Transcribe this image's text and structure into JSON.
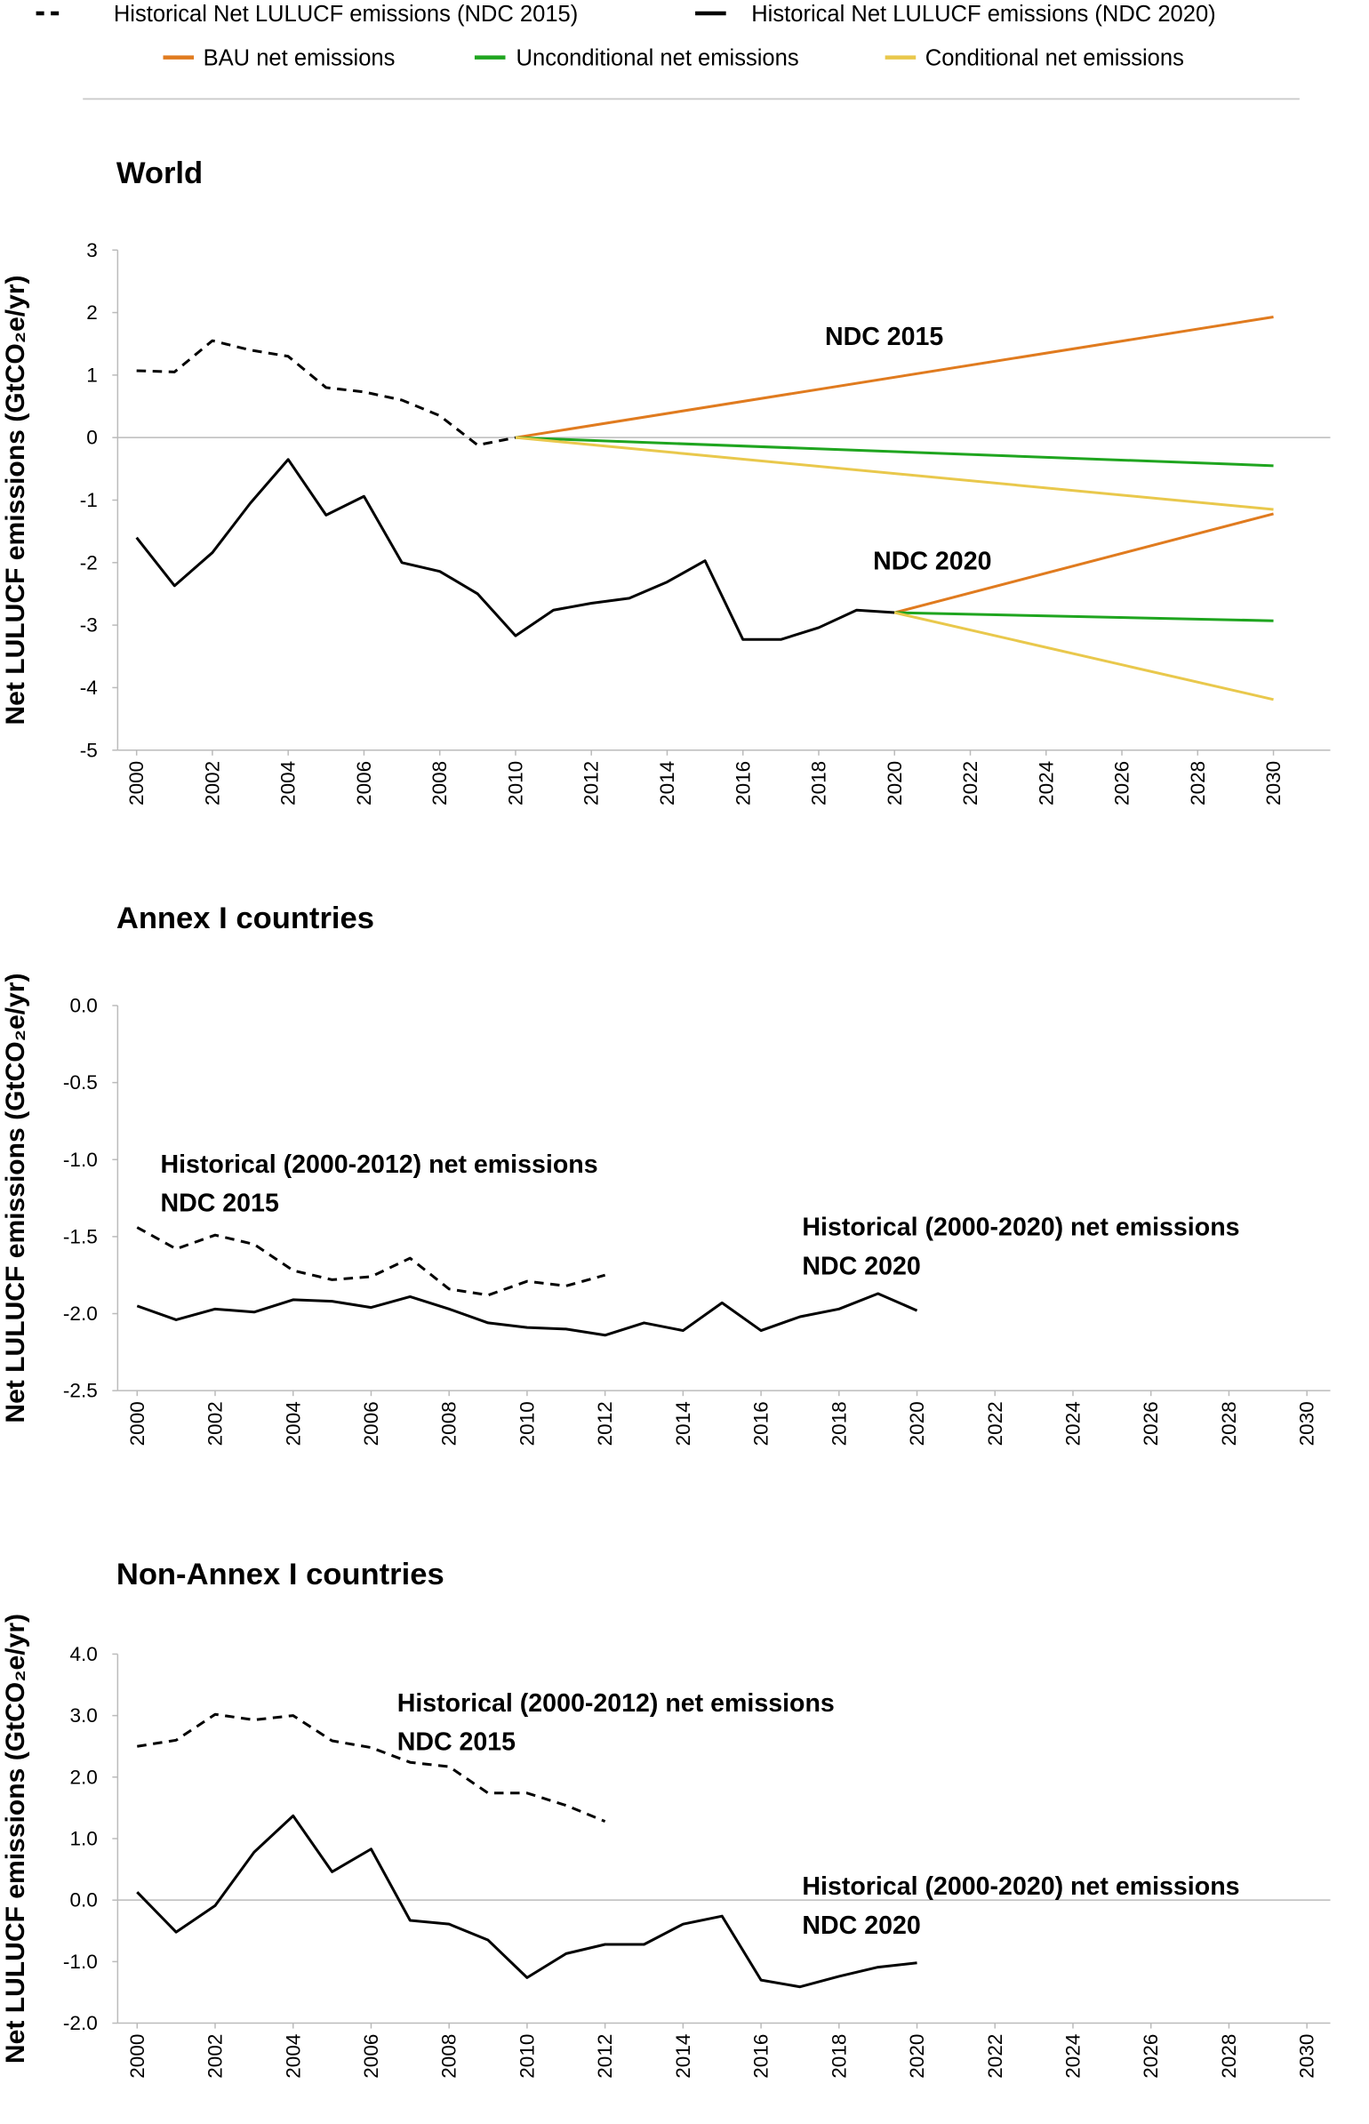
{
  "chart_data": [
    {
      "type": "line",
      "title": "World",
      "y_label": "Net LULUCF emissions (GtCO₂e/yr)",
      "xlim": [
        1999.5,
        2031.5
      ],
      "xticks": [
        2000,
        2002,
        2004,
        2006,
        2008,
        2010,
        2012,
        2014,
        2016,
        2018,
        2020,
        2022,
        2024,
        2026,
        2028,
        2030
      ],
      "ylim": [
        -5,
        3
      ],
      "yticks": [
        3,
        2,
        1,
        0,
        -1,
        -2,
        -3,
        -4,
        -5
      ],
      "zero_line": true,
      "annotations": [
        "NDC 2015",
        "NDC 2020"
      ],
      "series": [
        {
          "name": "Historical Net LULUCF emissions (NDC 2015)",
          "color": "#000000",
          "dash": true,
          "x": [
            2000,
            2001,
            2002,
            2003,
            2004,
            2005,
            2006,
            2007,
            2008,
            2009,
            2010
          ],
          "values": [
            1.07,
            1.05,
            1.55,
            1.4,
            1.3,
            0.8,
            0.73,
            0.6,
            0.35,
            -0.12,
            0
          ]
        },
        {
          "name": "Historical Net LULUCF emissions (NDC 2020)",
          "color": "#000000",
          "dash": false,
          "x": [
            2000,
            2001,
            2002,
            2003,
            2004,
            2005,
            2006,
            2007,
            2008,
            2009,
            2010,
            2011,
            2012,
            2013,
            2014,
            2015,
            2016,
            2017,
            2018,
            2019,
            2020
          ],
          "values": [
            -1.6,
            -2.37,
            -1.84,
            -1.05,
            -0.35,
            -1.24,
            -0.94,
            -2.0,
            -2.14,
            -2.5,
            -3.17,
            -2.76,
            -2.65,
            -2.57,
            -2.31,
            -1.97,
            -3.23,
            -3.23,
            -3.04,
            -2.76,
            -2.8
          ]
        },
        {
          "name": "BAU net emissions",
          "color": "#e07b1f",
          "dash": false,
          "x": [
            2010,
            2030
          ],
          "values": [
            0,
            1.93
          ]
        },
        {
          "name": "Unconditional net emissions",
          "color": "#1fa51f",
          "dash": false,
          "x": [
            2010,
            2030
          ],
          "values": [
            0,
            -0.45
          ]
        },
        {
          "name": "Conditional net emissions",
          "color": "#e9c84c",
          "dash": false,
          "x": [
            2010,
            2030
          ],
          "values": [
            0,
            -1.15
          ]
        },
        {
          "color": "#e07b1f",
          "dash": false,
          "x": [
            2020,
            2030
          ],
          "values": [
            -2.8,
            -1.22
          ]
        },
        {
          "color": "#1fa51f",
          "dash": false,
          "x": [
            2020,
            2030
          ],
          "values": [
            -2.8,
            -2.93
          ]
        },
        {
          "color": "#e9c84c",
          "dash": false,
          "x": [
            2020,
            2030
          ],
          "values": [
            -2.8,
            -4.19
          ]
        }
      ]
    },
    {
      "type": "line",
      "title": "Annex I countries",
      "y_label": "Net LULUCF emissions (GtCO₂e/yr)",
      "xlim": [
        1999.5,
        2030.6
      ],
      "xticks": [
        2000,
        2002,
        2004,
        2006,
        2008,
        2010,
        2012,
        2014,
        2016,
        2018,
        2020,
        2022,
        2024,
        2026,
        2028,
        2030
      ],
      "ylim": [
        -2.5,
        0
      ],
      "yticks": [
        {
          "value": 0,
          "label": "0.0"
        },
        -0.5,
        {
          "value": -1,
          "label": "-1.0"
        },
        -1.5,
        {
          "value": -2,
          "label": "-2.0"
        },
        -2.5
      ],
      "zero_line": false,
      "annotations": [
        "Historical (2000-2012) net emissions",
        "NDC 2015",
        "Historical (2000-2020) net emissions",
        "NDC 2020"
      ],
      "series": [
        {
          "color": "#000000",
          "dash": true,
          "x": [
            2000,
            2001,
            2002,
            2003,
            2004,
            2005,
            2006,
            2007,
            2008,
            2009,
            2010,
            2011,
            2012
          ],
          "values": [
            -1.44,
            -1.58,
            -1.49,
            -1.55,
            -1.72,
            -1.78,
            -1.76,
            -1.64,
            -1.84,
            -1.88,
            -1.79,
            -1.82,
            -1.75
          ]
        },
        {
          "color": "#000000",
          "dash": false,
          "x": [
            2000,
            2001,
            2002,
            2003,
            2004,
            2005,
            2006,
            2007,
            2008,
            2009,
            2010,
            2011,
            2012,
            2013,
            2014,
            2015,
            2016,
            2017,
            2018,
            2019,
            2020
          ],
          "values": [
            -1.95,
            -2.04,
            -1.97,
            -1.99,
            -1.91,
            -1.92,
            -1.96,
            -1.89,
            -1.97,
            -2.06,
            -2.09,
            -2.1,
            -2.14,
            -2.06,
            -2.11,
            -1.93,
            -2.11,
            -2.02,
            -1.97,
            -1.87,
            -1.98
          ]
        }
      ]
    },
    {
      "type": "line",
      "title": "Non-Annex I countries",
      "y_label": "Net LULUCF emissions (GtCO₂e/yr)",
      "xlim": [
        1999.5,
        2030.6
      ],
      "xticks": [
        2000,
        2002,
        2004,
        2006,
        2008,
        2010,
        2012,
        2014,
        2016,
        2018,
        2020,
        2022,
        2024,
        2026,
        2028,
        2030
      ],
      "ylim": [
        -2,
        4
      ],
      "yticks": [
        {
          "value": 4,
          "label": "4.0"
        },
        {
          "value": 3,
          "label": "3.0"
        },
        {
          "value": 2,
          "label": "2.0"
        },
        {
          "value": 1,
          "label": "1.0"
        },
        {
          "value": 0,
          "label": "0.0"
        },
        {
          "value": -1,
          "label": "-1.0"
        },
        {
          "value": -2,
          "label": "-2.0"
        }
      ],
      "zero_line": true,
      "annotations": [
        "Historical (2000-2012) net emissions",
        "NDC 2015",
        "Historical (2000-2020) net emissions",
        "NDC 2020"
      ],
      "series": [
        {
          "color": "#000000",
          "dash": true,
          "x": [
            2000,
            2001,
            2002,
            2003,
            2004,
            2005,
            2006,
            2007,
            2008,
            2009,
            2010,
            2011,
            2012
          ],
          "values": [
            2.5,
            2.6,
            3.02,
            2.93,
            3.0,
            2.59,
            2.48,
            2.24,
            2.17,
            1.74,
            1.74,
            1.54,
            1.28
          ]
        },
        {
          "color": "#000000",
          "dash": false,
          "x": [
            2000,
            2001,
            2002,
            2003,
            2004,
            2005,
            2006,
            2007,
            2008,
            2009,
            2010,
            2011,
            2012,
            2013,
            2014,
            2015,
            2016,
            2017,
            2018,
            2019,
            2020
          ],
          "values": [
            0.13,
            -0.52,
            -0.09,
            0.78,
            1.37,
            0.46,
            0.83,
            -0.33,
            -0.39,
            -0.65,
            -1.26,
            -0.87,
            -0.72,
            -0.72,
            -0.39,
            -0.26,
            -1.3,
            -1.41,
            -1.24,
            -1.09,
            -1.02
          ]
        }
      ]
    }
  ]
}
